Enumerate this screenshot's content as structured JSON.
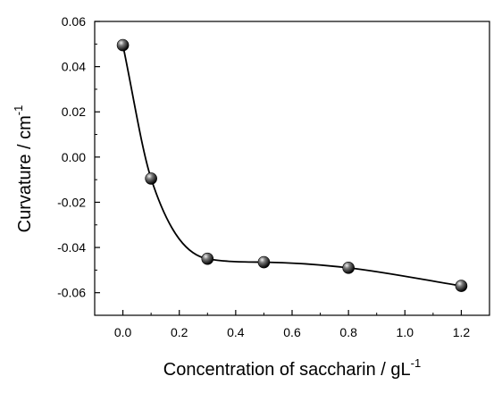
{
  "chart_data": {
    "type": "line",
    "title": "",
    "xlabel": {
      "base": "Concentration of saccharin / gL",
      "sup": "-1"
    },
    "ylabel": {
      "base": "Curvature / cm",
      "sup": "-1"
    },
    "xlim": [
      -0.1,
      1.3
    ],
    "ylim": [
      -0.07,
      0.06
    ],
    "x_ticks": [
      0.0,
      0.2,
      0.4,
      0.6,
      0.8,
      1.0,
      1.2
    ],
    "x_tick_labels": [
      "0.0",
      "0.2",
      "0.4",
      "0.6",
      "0.8",
      "1.0",
      "1.2"
    ],
    "y_ticks": [
      0.06,
      0.04,
      0.02,
      0.0,
      -0.02,
      -0.04,
      -0.06
    ],
    "y_tick_labels": [
      "0.06",
      "0.04",
      "0.02",
      "0.00",
      "-0.02",
      "-0.04",
      "-0.06"
    ],
    "grid": false,
    "legend": "none",
    "series": [
      {
        "x": [
          0.0,
          0.1,
          0.3,
          0.5,
          0.8,
          1.2
        ],
        "y": [
          0.0495,
          -0.0095,
          -0.045,
          -0.0465,
          -0.049,
          -0.057
        ],
        "color": "#000000",
        "marker": "sphere"
      }
    ]
  }
}
